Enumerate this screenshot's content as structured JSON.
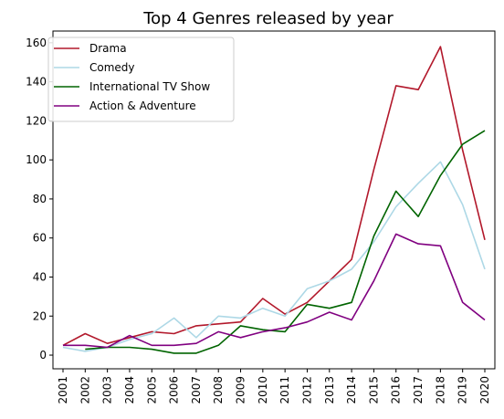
{
  "chart_data": {
    "type": "line",
    "title": "Top 4 Genres released by year",
    "xlabel": "",
    "ylabel": "",
    "x": [
      2001,
      2002,
      2003,
      2004,
      2005,
      2006,
      2007,
      2008,
      2009,
      2010,
      2011,
      2012,
      2013,
      2014,
      2015,
      2016,
      2017,
      2018,
      2019,
      2020
    ],
    "yticks": [
      0,
      20,
      40,
      60,
      80,
      100,
      120,
      140,
      160
    ],
    "ylim": [
      -7,
      166
    ],
    "grid": false,
    "legend_position": "top-left",
    "series": [
      {
        "name": "Drama",
        "color": "#b2182b",
        "x": [
          2001,
          2002,
          2003,
          2004,
          2005,
          2006,
          2007,
          2008,
          2009,
          2010,
          2011,
          2012,
          2013,
          2014,
          2015,
          2016,
          2017,
          2018,
          2019,
          2020
        ],
        "values": [
          5,
          11,
          6,
          9,
          12,
          11,
          15,
          16,
          17,
          29,
          21,
          27,
          38,
          49,
          95,
          138,
          136,
          158,
          105,
          59
        ]
      },
      {
        "name": "Comedy",
        "color": "#add8e6",
        "x": [
          2001,
          2002,
          2003,
          2004,
          2005,
          2006,
          2007,
          2008,
          2009,
          2010,
          2011,
          2012,
          2013,
          2014,
          2015,
          2016,
          2017,
          2018,
          2019,
          2020
        ],
        "values": [
          4,
          2,
          4,
          8,
          11,
          19,
          9,
          20,
          19,
          24,
          20,
          34,
          38,
          44,
          58,
          76,
          88,
          99,
          77,
          44
        ]
      },
      {
        "name": "International TV Show",
        "color": "#006400",
        "x": [
          2002,
          2003,
          2004,
          2005,
          2006,
          2007,
          2008,
          2009,
          2010,
          2011,
          2012,
          2013,
          2014,
          2015,
          2016,
          2017,
          2018,
          2019,
          2020
        ],
        "values": [
          3,
          4,
          4,
          3,
          1,
          1,
          5,
          15,
          13,
          12,
          26,
          24,
          27,
          61,
          84,
          71,
          92,
          108,
          115
        ]
      },
      {
        "name": "Action & Adventure",
        "color": "#800080",
        "x": [
          2001,
          2002,
          2003,
          2004,
          2005,
          2006,
          2007,
          2008,
          2009,
          2010,
          2011,
          2012,
          2013,
          2014,
          2015,
          2016,
          2017,
          2018,
          2019,
          2020
        ],
        "values": [
          5,
          5,
          4,
          10,
          5,
          5,
          6,
          12,
          9,
          12,
          14,
          17,
          22,
          18,
          38,
          62,
          57,
          56,
          27,
          18
        ]
      }
    ]
  }
}
